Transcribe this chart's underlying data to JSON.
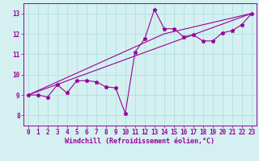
{
  "xlabel": "Windchill (Refroidissement éolien,°C)",
  "background_color": "#d4f0f0",
  "line_color": "#990099",
  "xlim": [
    -0.5,
    23.5
  ],
  "ylim": [
    7.5,
    13.5
  ],
  "xticks": [
    0,
    1,
    2,
    3,
    4,
    5,
    6,
    7,
    8,
    9,
    10,
    11,
    12,
    13,
    14,
    15,
    16,
    17,
    18,
    19,
    20,
    21,
    22,
    23
  ],
  "yticks": [
    8,
    9,
    10,
    11,
    12,
    13
  ],
  "series1_x": [
    0,
    1,
    2,
    3,
    4,
    5,
    6,
    7,
    8,
    9,
    10,
    11,
    12,
    13,
    14,
    15,
    16,
    17,
    18,
    19,
    20,
    21,
    22,
    23
  ],
  "series1_y": [
    9.0,
    9.0,
    8.9,
    9.5,
    9.1,
    9.7,
    9.7,
    9.65,
    9.4,
    9.35,
    8.1,
    11.1,
    11.75,
    13.2,
    12.25,
    12.25,
    11.85,
    11.95,
    11.65,
    11.65,
    12.05,
    12.15,
    12.45,
    13.0
  ],
  "series2_x": [
    0,
    23
  ],
  "series2_y": [
    9.0,
    13.0
  ],
  "series3_x": [
    0,
    14,
    23
  ],
  "series3_y": [
    9.0,
    12.0,
    13.0
  ],
  "grid_color": "#aadddd",
  "tick_fontsize": 5.5,
  "xlabel_fontsize": 6.0
}
